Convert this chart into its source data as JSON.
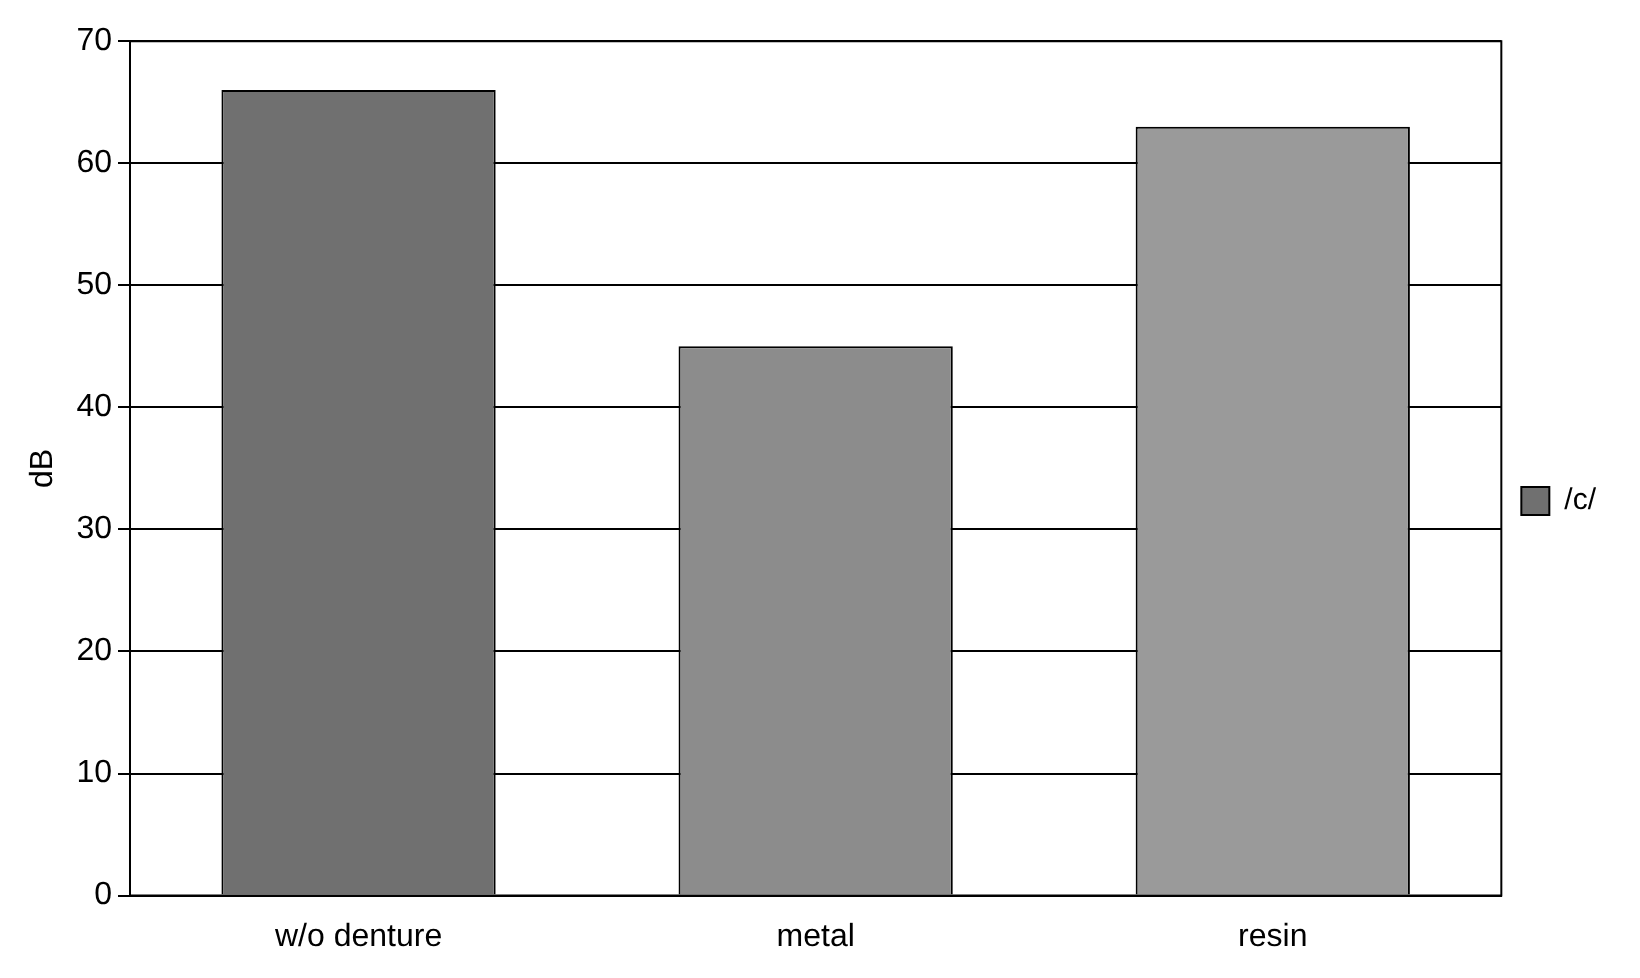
{
  "chart_data": {
    "type": "bar",
    "ylabel": "dB",
    "categories": [
      "w/o denture",
      "metal",
      "resin"
    ],
    "series": [
      {
        "name": "/c/",
        "color": "#707070",
        "colors": [
          "#707070",
          "#8c8c8c",
          "#9a9a9a"
        ],
        "values": [
          66,
          45,
          63
        ]
      }
    ],
    "ylim": [
      0,
      70
    ],
    "yticks": [
      0,
      10,
      20,
      30,
      40,
      50,
      60,
      70
    ],
    "grid": "y",
    "legend": "right"
  }
}
